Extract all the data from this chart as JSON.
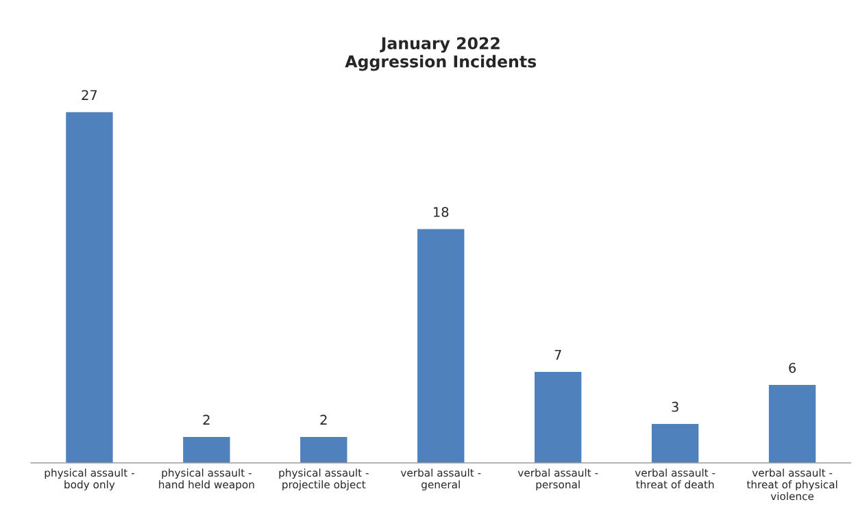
{
  "chart_data": {
    "type": "bar",
    "title": "January 2022\nAggression Incidents",
    "categories": [
      "physical assault -\nbody only",
      "physical assault -\nhand held weapon",
      "physical assault -\nprojectile object",
      "verbal assault -\ngeneral",
      "verbal assault -\npersonal",
      "verbal assault -\nthreat of death",
      "verbal assault -\nthreat of physical\nviolence"
    ],
    "values": [
      27,
      2,
      2,
      18,
      7,
      3,
      6
    ],
    "color": "#4f81bd",
    "data_labels": true,
    "grid": false,
    "legend": false
  }
}
